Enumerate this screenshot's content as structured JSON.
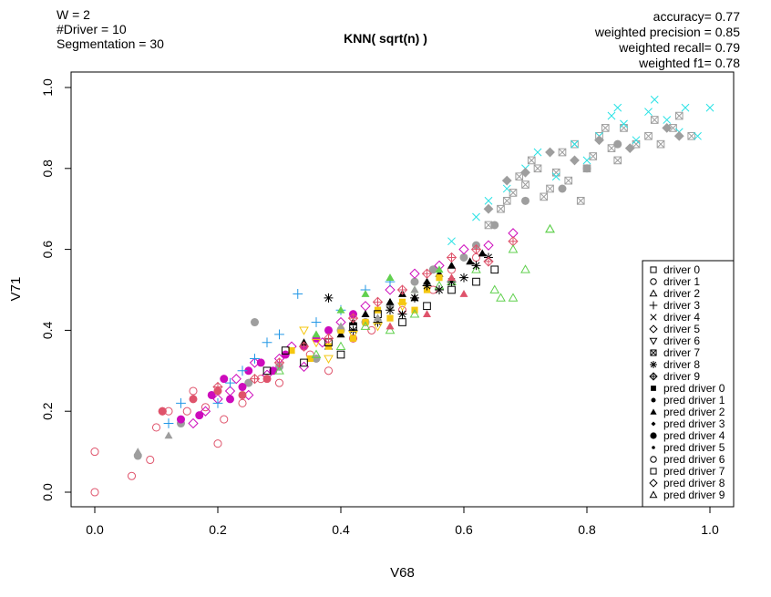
{
  "info": {
    "w": "W = 2",
    "drivers": "#Driver = 10",
    "segmentation": "Segmentation = 30"
  },
  "metrics": {
    "accuracy": "accuracy= 0.77",
    "precision": "weighted precision = 0.85",
    "recall": "weighted recall= 0.79",
    "f1": "weighted f1= 0.78"
  },
  "chart_data": {
    "type": "scatter",
    "title": "KNN( sqrt(n) )",
    "xlabel": "V68",
    "ylabel": "V71",
    "xlim": [
      0,
      1
    ],
    "ylim": [
      0,
      1
    ],
    "x_ticks": [
      "0.0",
      "0.2",
      "0.4",
      "0.6",
      "0.8",
      "1.0"
    ],
    "y_ticks": [
      "0.0",
      "0.2",
      "0.4",
      "0.6",
      "0.8",
      "1.0"
    ],
    "grid": false,
    "legend_position": "bottom-right",
    "legend": [
      "driver 0",
      "driver 1",
      "driver 2",
      "driver 3",
      "driver 4",
      "driver 5",
      "driver 6",
      "driver 7",
      "driver 8",
      "driver 9",
      "pred driver 0",
      "pred driver 1",
      "pred driver 2",
      "pred driver 3",
      "pred driver 4",
      "pred driver 5",
      "pred driver 6",
      "pred driver 7",
      "pred driver 8",
      "pred driver 9"
    ],
    "legend_symbols": [
      "square-open",
      "circle-open",
      "triangle-open",
      "plus",
      "cross",
      "diamond-open",
      "triangle-down-open",
      "square-x",
      "asterisk",
      "diamond-plus",
      "square-filled",
      "circle-filled-small",
      "triangle-filled",
      "diamond-filled-small",
      "circle-filled",
      "dot",
      "circle-open",
      "square-open",
      "diamond-open",
      "triangle-open"
    ],
    "driver_colors": {
      "driver 0": "#000000",
      "driver 1": "#DF536B",
      "driver 2": "#61D04F",
      "driver 3": "#2297E6",
      "driver 4": "#28E2E5",
      "driver 5": "#CD0BBC",
      "driver 6": "#F5C710",
      "driver 7": "#9E9E9E",
      "driver 8": "#000000",
      "driver 9": "#DF536B"
    },
    "series": [
      {
        "symbol": "circle-open",
        "color": "#DF536B",
        "points": [
          [
            0.0,
            0.0
          ],
          [
            0.0,
            0.1
          ],
          [
            0.06,
            0.04
          ],
          [
            0.09,
            0.08
          ],
          [
            0.1,
            0.16
          ],
          [
            0.11,
            0.2
          ],
          [
            0.12,
            0.2
          ],
          [
            0.15,
            0.2
          ],
          [
            0.16,
            0.25
          ],
          [
            0.18,
            0.21
          ],
          [
            0.2,
            0.12
          ],
          [
            0.21,
            0.18
          ],
          [
            0.24,
            0.22
          ],
          [
            0.27,
            0.28
          ],
          [
            0.3,
            0.27
          ],
          [
            0.35,
            0.34
          ],
          [
            0.38,
            0.3
          ],
          [
            0.42,
            0.38
          ],
          [
            0.45,
            0.4
          ],
          [
            0.5,
            0.45
          ],
          [
            0.55,
            0.5
          ],
          [
            0.58,
            0.55
          ],
          [
            0.62,
            0.58
          ]
        ]
      },
      {
        "symbol": "square-x",
        "color": "#9E9E9E",
        "points": [
          [
            0.64,
            0.66
          ],
          [
            0.66,
            0.7
          ],
          [
            0.67,
            0.72
          ],
          [
            0.68,
            0.74
          ],
          [
            0.69,
            0.78
          ],
          [
            0.7,
            0.76
          ],
          [
            0.71,
            0.82
          ],
          [
            0.72,
            0.8
          ],
          [
            0.73,
            0.73
          ],
          [
            0.74,
            0.75
          ],
          [
            0.75,
            0.79
          ],
          [
            0.76,
            0.84
          ],
          [
            0.77,
            0.77
          ],
          [
            0.78,
            0.86
          ],
          [
            0.79,
            0.72
          ],
          [
            0.8,
            0.8
          ],
          [
            0.81,
            0.83
          ],
          [
            0.82,
            0.88
          ],
          [
            0.83,
            0.9
          ],
          [
            0.84,
            0.85
          ],
          [
            0.85,
            0.82
          ],
          [
            0.86,
            0.9
          ],
          [
            0.88,
            0.86
          ],
          [
            0.9,
            0.88
          ],
          [
            0.91,
            0.92
          ],
          [
            0.92,
            0.86
          ],
          [
            0.94,
            0.9
          ],
          [
            0.95,
            0.93
          ],
          [
            0.97,
            0.88
          ]
        ]
      },
      {
        "symbol": "cross",
        "color": "#28E2E5",
        "points": [
          [
            0.58,
            0.62
          ],
          [
            0.62,
            0.68
          ],
          [
            0.64,
            0.72
          ],
          [
            0.67,
            0.75
          ],
          [
            0.7,
            0.8
          ],
          [
            0.72,
            0.84
          ],
          [
            0.75,
            0.78
          ],
          [
            0.78,
            0.86
          ],
          [
            0.8,
            0.82
          ],
          [
            0.82,
            0.88
          ],
          [
            0.84,
            0.93
          ],
          [
            0.85,
            0.95
          ],
          [
            0.86,
            0.91
          ],
          [
            0.88,
            0.87
          ],
          [
            0.9,
            0.94
          ],
          [
            0.91,
            0.97
          ],
          [
            0.93,
            0.92
          ],
          [
            0.95,
            0.89
          ],
          [
            0.96,
            0.95
          ],
          [
            0.98,
            0.88
          ],
          [
            1.0,
            0.95
          ]
        ]
      },
      {
        "symbol": "diamond-filled",
        "color": "#9E9E9E",
        "points": [
          [
            0.64,
            0.7
          ],
          [
            0.67,
            0.77
          ],
          [
            0.7,
            0.79
          ],
          [
            0.74,
            0.84
          ],
          [
            0.78,
            0.82
          ],
          [
            0.82,
            0.87
          ],
          [
            0.87,
            0.85
          ],
          [
            0.93,
            0.9
          ],
          [
            0.95,
            0.88
          ]
        ]
      },
      {
        "symbol": "circle-filled",
        "color": "#9E9E9E",
        "points": [
          [
            0.07,
            0.09
          ],
          [
            0.14,
            0.17
          ],
          [
            0.25,
            0.27
          ],
          [
            0.26,
            0.42
          ],
          [
            0.3,
            0.31
          ],
          [
            0.36,
            0.33
          ],
          [
            0.4,
            0.4
          ],
          [
            0.44,
            0.42
          ],
          [
            0.48,
            0.46
          ],
          [
            0.52,
            0.52
          ],
          [
            0.55,
            0.55
          ],
          [
            0.6,
            0.58
          ],
          [
            0.62,
            0.61
          ],
          [
            0.65,
            0.66
          ],
          [
            0.7,
            0.72
          ],
          [
            0.76,
            0.75
          ],
          [
            0.8,
            0.8
          ],
          [
            0.85,
            0.86
          ]
        ]
      },
      {
        "symbol": "circle-filled",
        "color": "#CD0BBC",
        "points": [
          [
            0.14,
            0.18
          ],
          [
            0.17,
            0.19
          ],
          [
            0.19,
            0.24
          ],
          [
            0.21,
            0.28
          ],
          [
            0.22,
            0.23
          ],
          [
            0.24,
            0.26
          ],
          [
            0.25,
            0.3
          ],
          [
            0.27,
            0.32
          ],
          [
            0.29,
            0.3
          ],
          [
            0.31,
            0.34
          ],
          [
            0.34,
            0.36
          ],
          [
            0.36,
            0.38
          ],
          [
            0.38,
            0.4
          ],
          [
            0.42,
            0.44
          ]
        ]
      },
      {
        "symbol": "diamond-open",
        "color": "#CD0BBC",
        "points": [
          [
            0.16,
            0.17
          ],
          [
            0.18,
            0.2
          ],
          [
            0.2,
            0.23
          ],
          [
            0.22,
            0.25
          ],
          [
            0.23,
            0.28
          ],
          [
            0.25,
            0.24
          ],
          [
            0.26,
            0.32
          ],
          [
            0.28,
            0.29
          ],
          [
            0.3,
            0.33
          ],
          [
            0.32,
            0.36
          ],
          [
            0.34,
            0.31
          ],
          [
            0.37,
            0.37
          ],
          [
            0.4,
            0.42
          ],
          [
            0.44,
            0.46
          ],
          [
            0.48,
            0.5
          ],
          [
            0.52,
            0.54
          ],
          [
            0.56,
            0.56
          ],
          [
            0.6,
            0.6
          ],
          [
            0.64,
            0.61
          ],
          [
            0.68,
            0.64
          ]
        ]
      },
      {
        "symbol": "triangle-filled",
        "color": "#000000",
        "points": [
          [
            0.34,
            0.37
          ],
          [
            0.38,
            0.36
          ],
          [
            0.4,
            0.39
          ],
          [
            0.42,
            0.42
          ],
          [
            0.44,
            0.44
          ],
          [
            0.46,
            0.43
          ],
          [
            0.48,
            0.47
          ],
          [
            0.5,
            0.49
          ],
          [
            0.52,
            0.48
          ],
          [
            0.54,
            0.52
          ],
          [
            0.56,
            0.54
          ],
          [
            0.58,
            0.56
          ],
          [
            0.61,
            0.57
          ],
          [
            0.63,
            0.59
          ]
        ]
      },
      {
        "symbol": "square-filled",
        "color": "#F5C710",
        "points": [
          [
            0.32,
            0.35
          ],
          [
            0.35,
            0.33
          ],
          [
            0.38,
            0.36
          ],
          [
            0.4,
            0.4
          ],
          [
            0.42,
            0.38
          ],
          [
            0.44,
            0.42
          ],
          [
            0.46,
            0.45
          ],
          [
            0.48,
            0.43
          ],
          [
            0.5,
            0.47
          ],
          [
            0.52,
            0.45
          ],
          [
            0.54,
            0.5
          ],
          [
            0.56,
            0.53
          ]
        ]
      },
      {
        "symbol": "triangle-open",
        "color": "#61D04F",
        "points": [
          [
            0.3,
            0.3
          ],
          [
            0.36,
            0.34
          ],
          [
            0.4,
            0.36
          ],
          [
            0.44,
            0.41
          ],
          [
            0.48,
            0.4
          ],
          [
            0.52,
            0.44
          ],
          [
            0.56,
            0.51
          ],
          [
            0.58,
            0.52
          ],
          [
            0.62,
            0.55
          ],
          [
            0.65,
            0.5
          ],
          [
            0.68,
            0.48
          ],
          [
            0.7,
            0.55
          ],
          [
            0.74,
            0.65
          ]
        ]
      },
      {
        "symbol": "plus",
        "color": "#2297E6",
        "points": [
          [
            0.12,
            0.17
          ],
          [
            0.14,
            0.22
          ],
          [
            0.2,
            0.22
          ],
          [
            0.22,
            0.27
          ],
          [
            0.24,
            0.3
          ],
          [
            0.26,
            0.33
          ],
          [
            0.28,
            0.37
          ],
          [
            0.3,
            0.39
          ],
          [
            0.33,
            0.49
          ],
          [
            0.36,
            0.42
          ],
          [
            0.4,
            0.45
          ],
          [
            0.44,
            0.5
          ],
          [
            0.48,
            0.52
          ]
        ]
      },
      {
        "symbol": "asterisk",
        "color": "#000000",
        "points": [
          [
            0.38,
            0.48
          ],
          [
            0.42,
            0.4
          ],
          [
            0.46,
            0.42
          ],
          [
            0.48,
            0.45
          ],
          [
            0.5,
            0.44
          ],
          [
            0.52,
            0.48
          ],
          [
            0.54,
            0.51
          ],
          [
            0.56,
            0.5
          ],
          [
            0.58,
            0.52
          ],
          [
            0.6,
            0.53
          ],
          [
            0.62,
            0.56
          ],
          [
            0.64,
            0.58
          ]
        ]
      },
      {
        "symbol": "square-open",
        "color": "#000000",
        "points": [
          [
            0.28,
            0.3
          ],
          [
            0.31,
            0.35
          ],
          [
            0.34,
            0.32
          ],
          [
            0.38,
            0.37
          ],
          [
            0.4,
            0.34
          ],
          [
            0.42,
            0.41
          ],
          [
            0.46,
            0.44
          ],
          [
            0.5,
            0.42
          ],
          [
            0.54,
            0.46
          ],
          [
            0.58,
            0.5
          ],
          [
            0.62,
            0.52
          ],
          [
            0.65,
            0.55
          ]
        ]
      },
      {
        "symbol": "triangle-filled",
        "color": "#61D04F",
        "points": [
          [
            0.36,
            0.39
          ],
          [
            0.4,
            0.45
          ],
          [
            0.44,
            0.49
          ],
          [
            0.48,
            0.53
          ],
          [
            0.52,
            0.5
          ],
          [
            0.56,
            0.55
          ]
        ]
      },
      {
        "symbol": "triangle-filled",
        "color": "#9E9E9E",
        "points": [
          [
            0.07,
            0.1
          ],
          [
            0.12,
            0.14
          ],
          [
            0.4,
            0.41
          ],
          [
            0.46,
            0.43
          ],
          [
            0.52,
            0.5
          ]
        ]
      },
      {
        "symbol": "triangle-filled",
        "color": "#DF536B",
        "points": [
          [
            0.48,
            0.41
          ],
          [
            0.54,
            0.44
          ],
          [
            0.58,
            0.53
          ],
          [
            0.6,
            0.49
          ]
        ]
      },
      {
        "symbol": "diamond-plus",
        "color": "#DF536B",
        "points": [
          [
            0.2,
            0.26
          ],
          [
            0.26,
            0.28
          ],
          [
            0.3,
            0.32
          ],
          [
            0.34,
            0.36
          ],
          [
            0.38,
            0.38
          ],
          [
            0.42,
            0.43
          ],
          [
            0.46,
            0.47
          ],
          [
            0.5,
            0.5
          ],
          [
            0.54,
            0.54
          ],
          [
            0.58,
            0.58
          ],
          [
            0.62,
            0.6
          ],
          [
            0.64,
            0.57
          ],
          [
            0.68,
            0.62
          ]
        ]
      },
      {
        "symbol": "circle-filled",
        "color": "#DF536B",
        "points": [
          [
            0.11,
            0.2
          ],
          [
            0.16,
            0.23
          ],
          [
            0.2,
            0.25
          ],
          [
            0.24,
            0.24
          ],
          [
            0.28,
            0.28
          ]
        ]
      },
      {
        "symbol": "triangle-down-open",
        "color": "#F5C710",
        "points": [
          [
            0.34,
            0.4
          ],
          [
            0.36,
            0.37
          ],
          [
            0.38,
            0.33
          ],
          [
            0.42,
            0.39
          ],
          [
            0.46,
            0.41
          ],
          [
            0.5,
            0.46
          ]
        ]
      },
      {
        "symbol": "triangle-open",
        "color": "#61D04F",
        "points": [
          [
            0.66,
            0.48
          ],
          [
            0.68,
            0.6
          ],
          [
            0.74,
            0.65
          ]
        ]
      }
    ]
  }
}
